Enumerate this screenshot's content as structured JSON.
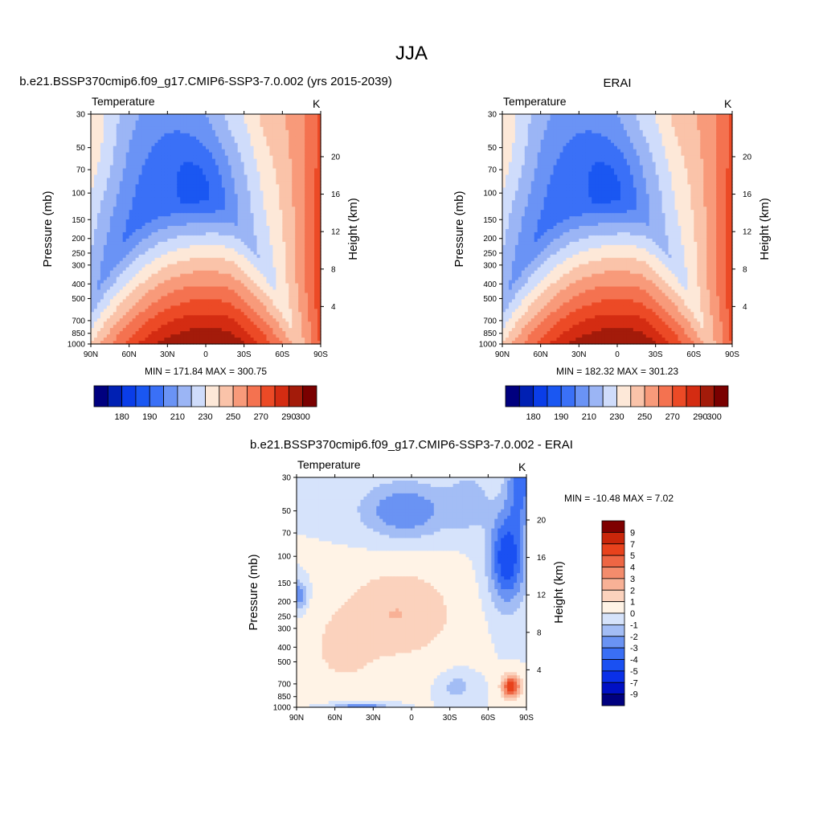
{
  "page_title": "JJA",
  "colors": {
    "abs_palette": [
      "#00007f",
      "#0020b3",
      "#0a3de8",
      "#1a57f2",
      "#3a70f7",
      "#6a93f5",
      "#9bb5f5",
      "#cfdcfb",
      "#fde8d8",
      "#fac3a9",
      "#f89a7a",
      "#f47250",
      "#ec4a26",
      "#d42c12",
      "#a31b0a",
      "#7a0000"
    ],
    "diff_palette": [
      "#00007f",
      "#0010c4",
      "#0a30e8",
      "#1a50f2",
      "#3a6ff5",
      "#6a93f3",
      "#a3bdf5",
      "#d6e3fb",
      "#fff3e6",
      "#fbd2bd",
      "#f8b196",
      "#f48c6c",
      "#ee6644",
      "#e8421c",
      "#c9260a",
      "#7f0000"
    ]
  },
  "chart_data": [
    {
      "id": "left",
      "type": "heatmap",
      "title": "b.e21.BSSP370cmip6.f09_g17.CMIP6-SSP3-7.0.002 (yrs 2015-2039)",
      "variable_label": "Temperature",
      "units_label": "K",
      "ylabel": "Pressure (mb)",
      "y2label": "Height (km)",
      "x_ticks": [
        "90N",
        "60N",
        "30N",
        "0",
        "30S",
        "60S",
        "90S"
      ],
      "y_ticks": [
        "30",
        "50",
        "70",
        "100",
        "150",
        "200",
        "250",
        "300",
        "400",
        "500",
        "700",
        "850",
        "1000"
      ],
      "y2_ticks": [
        "20",
        "16",
        "12",
        "8",
        "4"
      ],
      "minmax_label": "MIN = 171.84  MAX = 300.75",
      "colorbar_labels": [
        "180",
        "190",
        "210",
        "230",
        "250",
        "270",
        "290",
        "300"
      ]
    },
    {
      "id": "right",
      "type": "heatmap",
      "title": "ERAI",
      "variable_label": "Temperature",
      "units_label": "K",
      "ylabel": "Pressure (mb)",
      "y2label": "Height (km)",
      "x_ticks": [
        "90N",
        "60N",
        "30N",
        "0",
        "30S",
        "60S",
        "90S"
      ],
      "y_ticks": [
        "30",
        "50",
        "70",
        "100",
        "150",
        "200",
        "250",
        "300",
        "400",
        "500",
        "700",
        "850",
        "1000"
      ],
      "y2_ticks": [
        "20",
        "16",
        "12",
        "8",
        "4"
      ],
      "minmax_label": "MIN = 182.32  MAX = 301.23",
      "colorbar_labels": [
        "180",
        "190",
        "210",
        "230",
        "250",
        "270",
        "290",
        "300"
      ]
    },
    {
      "id": "diff",
      "type": "heatmap",
      "title": "b.e21.BSSP370cmip6.f09_g17.CMIP6-SSP3-7.0.002 - ERAI",
      "variable_label": "Temperature",
      "units_label": "K",
      "ylabel": "Pressure (mb)",
      "y2label": "Height (km)",
      "x_ticks": [
        "90N",
        "60N",
        "30N",
        "0",
        "30S",
        "60S",
        "90S"
      ],
      "y_ticks": [
        "30",
        "50",
        "70",
        "100",
        "150",
        "200",
        "250",
        "300",
        "400",
        "500",
        "700",
        "850",
        "1000"
      ],
      "y2_ticks": [
        "20",
        "16",
        "12",
        "8",
        "4"
      ],
      "minmax_label": "MIN = -10.48  MAX =   7.02",
      "colorbar_labels": [
        "9",
        "7",
        "5",
        "4",
        "3",
        "2",
        "1",
        "0",
        "-1",
        "-2",
        "-3",
        "-4",
        "-5",
        "-7",
        "-9"
      ]
    }
  ]
}
